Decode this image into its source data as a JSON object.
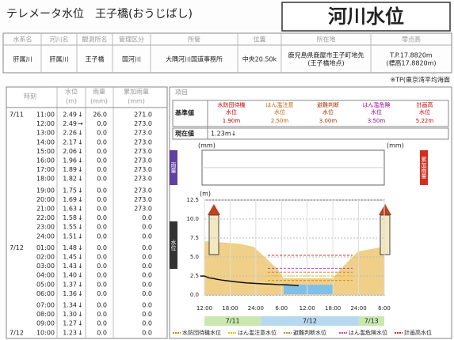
{
  "header": {
    "title": "テレメータ水位　王子橋(おうじばし)",
    "badge": "河川水位"
  },
  "info": {
    "headers": [
      "水系名",
      "河川名",
      "観測所名",
      "管理区分",
      "所管",
      "位置",
      "所在地",
      "零点高"
    ],
    "values": [
      [
        "肝属川"
      ],
      [
        "肝属川"
      ],
      [
        "王子橋"
      ],
      [
        "国河川"
      ],
      [
        "大隅河川国道事務所"
      ],
      [
        "中央20.50k"
      ],
      [
        "鹿児島県鹿屋市王子町地先",
        "(王子橋地点)"
      ],
      [
        "T.P.17.8820m",
        "(標高17.8820m)"
      ]
    ]
  },
  "note": "※TP(東京湾平均海面",
  "table": {
    "headers": [
      "時刻",
      "水位",
      "雨量",
      "累加雨量"
    ],
    "units": [
      null,
      "(m)",
      "(mm)",
      "(mm)"
    ],
    "rows": [
      {
        "date": "7/11",
        "time": "11:00",
        "level": {
          "value": 2.49,
          "label": "2.49"
        },
        "trend": "↓",
        "rain": "26.0",
        "total": "271.0"
      },
      {
        "date": null,
        "time": "12:00",
        "level": {
          "value": 2.49,
          "label": "2.49"
        },
        "trend": "→",
        "rain": "0.0",
        "total": "273.0"
      },
      {
        "date": null,
        "time": "13:00",
        "level": {
          "value": 2.26,
          "label": "2.26"
        },
        "trend": "↓",
        "rain": "0.0",
        "total": "273.0"
      },
      {
        "date": null,
        "time": "14:00",
        "level": {
          "value": 2.17,
          "label": "2.17"
        },
        "trend": "↓",
        "rain": "0.0",
        "total": "273.0"
      },
      {
        "date": null,
        "time": "15:00",
        "level": {
          "value": 2.06,
          "label": "2.06"
        },
        "trend": "↓",
        "rain": "0.0",
        "total": "273.0"
      },
      {
        "date": null,
        "time": "16:00",
        "level": {
          "value": 1.96,
          "label": "1.96"
        },
        "trend": "↓",
        "rain": "0.0",
        "total": "273.0"
      },
      {
        "date": null,
        "time": "17:00",
        "level": {
          "value": 1.89,
          "label": "1.89"
        },
        "trend": "↓",
        "rain": "0.0",
        "total": "273.0"
      },
      {
        "date": null,
        "time": "18:00",
        "level": {
          "value": 1.82,
          "label": "1.82"
        },
        "trend": "↓",
        "rain": "0.0",
        "total": "273.0"
      },
      {
        "date": null,
        "time": "19:00",
        "level": {
          "value": 1.75,
          "label": "1.75"
        },
        "trend": "↓",
        "rain": "0.0",
        "total": "273.0"
      },
      {
        "date": null,
        "time": "20:00",
        "level": {
          "value": 1.69,
          "label": "1.69"
        },
        "trend": "↓",
        "rain": "0.0",
        "total": "273.0"
      },
      {
        "date": null,
        "time": "21:00",
        "level": {
          "value": 1.63,
          "label": "1.63"
        },
        "trend": "↓",
        "rain": "0.0",
        "total": "273.0"
      },
      {
        "date": null,
        "time": "22:00",
        "level": {
          "value": 1.58,
          "label": "1.58"
        },
        "trend": "↓",
        "rain": "0.0",
        "total": "0.0"
      },
      {
        "date": null,
        "time": "23:00",
        "level": {
          "value": 1.55,
          "label": "1.55"
        },
        "trend": "↓",
        "rain": "0.0",
        "total": "0.0"
      },
      {
        "date": null,
        "time": "24:00",
        "level": {
          "value": 1.51,
          "label": "1.51"
        },
        "trend": "↓",
        "rain": "0.0",
        "total": "0.0"
      },
      {
        "date": "7/12",
        "time": "01:00",
        "level": {
          "value": 1.48,
          "label": "1.48"
        },
        "trend": "↓",
        "rain": "0.0",
        "total": "0.0"
      },
      {
        "date": null,
        "time": "02:00",
        "level": {
          "value": 1.45,
          "label": "1.45"
        },
        "trend": "↓",
        "rain": "0.0",
        "total": "0.0"
      },
      {
        "date": null,
        "time": "03:00",
        "level": {
          "value": 1.43,
          "label": "1.43"
        },
        "trend": "↓",
        "rain": "0.0",
        "total": "0.0"
      },
      {
        "date": null,
        "time": "04:00",
        "level": {
          "value": 1.4,
          "label": "1.40"
        },
        "trend": "↓",
        "rain": "0.0",
        "total": "0.0"
      },
      {
        "date": null,
        "time": "05:00",
        "level": {
          "value": 1.37,
          "label": "1.37"
        },
        "trend": "↓",
        "rain": "0.0",
        "total": "0.0"
      },
      {
        "date": null,
        "time": "06:00",
        "level": {
          "value": 1.36,
          "label": "1.36"
        },
        "trend": "↓",
        "rain": "0.0",
        "total": "0.0"
      },
      {
        "date": null,
        "time": "07:00",
        "level": {
          "value": 1.34,
          "label": "1.34"
        },
        "trend": "↓",
        "rain": "0.0",
        "total": "0.0"
      },
      {
        "date": null,
        "time": "08:00",
        "level": {
          "value": 1.3,
          "label": "1.30"
        },
        "trend": "↓",
        "rain": "0.0",
        "total": "0.0"
      },
      {
        "date": null,
        "time": "09:00",
        "level": {
          "value": 1.27,
          "label": "1.27"
        },
        "trend": "↓",
        "rain": "0.0",
        "total": "0.0"
      },
      {
        "date": "7/12",
        "time": "10:00",
        "level": {
          "value": 1.23,
          "label": "1.23"
        },
        "trend": "↓",
        "rain": "0.0",
        "total": "0.0"
      }
    ]
  },
  "panel": {
    "item": "項目",
    "standard_label": "基準値",
    "current_label": "現在値",
    "current": "1.23m↓",
    "standards": [
      {
        "name": [
          "水防団待機",
          "水位"
        ],
        "value": {
          "value": 1.9,
          "label": "1.90m"
        },
        "color": "#c00000"
      },
      {
        "name": [
          "はん濫注意",
          "水位"
        ],
        "value": {
          "value": 2.5,
          "label": "2.50m"
        },
        "color": "#c06000"
      },
      {
        "name": [
          "避難判断",
          "水位"
        ],
        "value": {
          "value": 3,
          "label": "3.00m"
        },
        "color": "#b03000"
      },
      {
        "name": [
          "はん濫危険",
          "水位"
        ],
        "value": {
          "value": 3.5,
          "label": "3.50m"
        },
        "color": "#a000a0"
      },
      {
        "name": [
          "計画高",
          "水位"
        ],
        "value": {
          "value": 5.22,
          "label": "5.22m"
        },
        "color": "#d00000"
      }
    ]
  },
  "rain_chart": {
    "unit_left": "(mm)",
    "unit_right": "(mm)",
    "left_label": "雨量",
    "right_label": "累加雨量"
  },
  "level_chart": {
    "unit": "(m)",
    "side_label": "水位",
    "ylim": [
      0,
      12.5
    ],
    "yticks": [
      12.5,
      {
        "value": 10,
        "label": "10.0"
      },
      7.5,
      {
        "value": 5,
        "label": "5.0"
      },
      2.5,
      {
        "value": 0,
        "label": "0.0"
      }
    ],
    "xticks": [
      "12:00",
      "18:00",
      "24:00",
      "6:00",
      "12:00",
      "18:00",
      "24:00",
      "6:00"
    ],
    "dates": [
      "7/11",
      "7/12",
      "7/13"
    ],
    "legend": [
      {
        "name": "水防団待機水位",
        "color": "#e08000"
      },
      {
        "name": "はん濫注意水位",
        "color": "#e0c000"
      },
      {
        "name": "避難判断水位",
        "color": "#d08040"
      },
      {
        "name": "はん濫危険水位",
        "color": "#c040c0"
      },
      {
        "name": "計画高水位",
        "color": "#e02020"
      }
    ]
  }
}
